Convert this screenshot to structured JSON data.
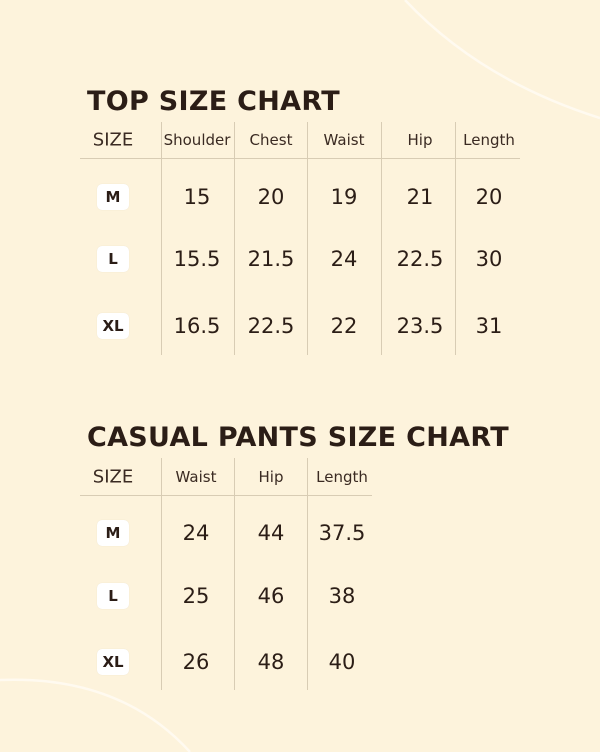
{
  "top_chart": {
    "title": "TOP SIZE CHART",
    "headers": [
      "SIZE",
      "Shoulder",
      "Chest",
      "Waist",
      "Hip",
      "Length"
    ],
    "rows": [
      {
        "size": "M",
        "values": [
          "15",
          "20",
          "19",
          "21",
          "20"
        ]
      },
      {
        "size": "L",
        "values": [
          "15.5",
          "21.5",
          "24",
          "22.5",
          "30"
        ]
      },
      {
        "size": "XL",
        "values": [
          "16.5",
          "22.5",
          "22",
          "23.5",
          "31"
        ]
      }
    ]
  },
  "pants_chart": {
    "title": "CASUAL PANTS SIZE CHART",
    "headers": [
      "SIZE",
      "Waist",
      "Hip",
      "Length"
    ],
    "rows": [
      {
        "size": "M",
        "values": [
          "24",
          "44",
          "37.5"
        ]
      },
      {
        "size": "L",
        "values": [
          "25",
          "46",
          "38"
        ]
      },
      {
        "size": "XL",
        "values": [
          "26",
          "48",
          "40"
        ]
      }
    ]
  },
  "colors": {
    "background": "#fdf3dc",
    "text": "#2b1d16",
    "badge": "#ffffff"
  }
}
